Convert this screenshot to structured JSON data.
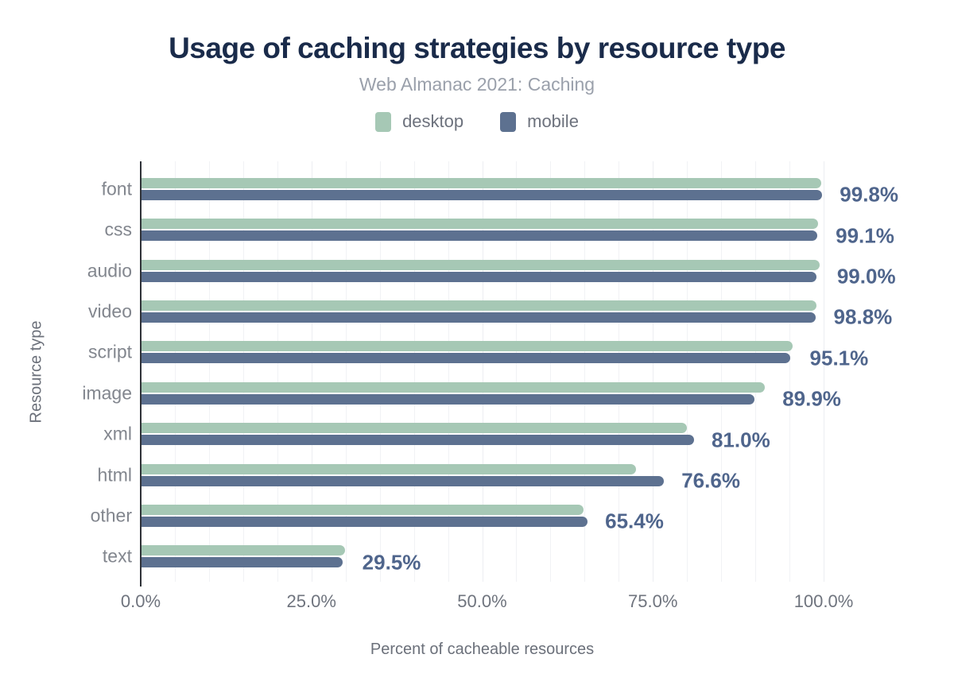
{
  "title": "Usage of caching strategies by resource type",
  "subtitle": "Web Almanac 2021: Caching",
  "legend": [
    {
      "label": "desktop",
      "color": "#a6c8b5"
    },
    {
      "label": "mobile",
      "color": "#5d7190"
    }
  ],
  "colors": {
    "title": "#1a2b4a",
    "subtitle": "#9aa0ab",
    "value_label": "#4f658c",
    "axis_line": "#2f3238",
    "gridline": "#f1f2f5"
  },
  "chart_data": {
    "type": "bar",
    "orientation": "horizontal",
    "title": "Usage of caching strategies by resource type",
    "subtitle": "Web Almanac 2021: Caching",
    "categories": [
      "font",
      "css",
      "audio",
      "video",
      "script",
      "image",
      "xml",
      "html",
      "other",
      "text"
    ],
    "series": [
      {
        "name": "desktop",
        "color": "#a6c8b5",
        "values": [
          99.7,
          99.2,
          99.4,
          98.9,
          95.4,
          91.4,
          79.9,
          72.5,
          64.8,
          29.8
        ]
      },
      {
        "name": "mobile",
        "color": "#5d7190",
        "values": [
          99.8,
          99.1,
          99.0,
          98.8,
          95.1,
          89.9,
          81.0,
          76.6,
          65.4,
          29.5
        ]
      }
    ],
    "value_labels": [
      "99.8%",
      "99.1%",
      "99.0%",
      "98.8%",
      "95.1%",
      "89.9%",
      "81.0%",
      "76.6%",
      "65.4%",
      "29.5%"
    ],
    "xlabel": "Percent of cacheable resources",
    "ylabel": "Resource type",
    "x_ticks": [
      "0.0%",
      "25.0%",
      "50.0%",
      "75.0%",
      "100.0%"
    ],
    "x_tick_positions": [
      0,
      25,
      50,
      75,
      100
    ],
    "xlim": [
      0,
      100
    ],
    "grid": "vertical, every 5%, light gray",
    "legend_position": "top center"
  }
}
